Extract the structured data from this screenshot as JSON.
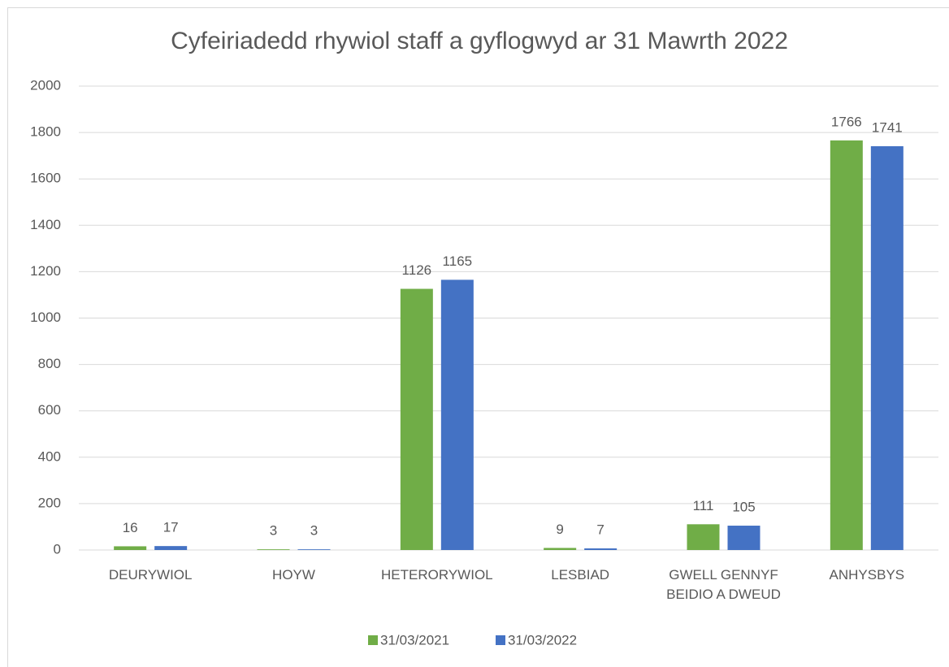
{
  "chart_data": {
    "type": "bar",
    "title": "Cyfeiriadedd rhywiol staff a gyflogwyd ar 31 Mawrth 2022",
    "categories": [
      "DEURYWIOL",
      "HOYW",
      "HETERORYWIOL",
      "LESBIAD",
      "GWELL GENNYF BEIDIO A DWEUD",
      "ANHYSBYS"
    ],
    "series": [
      {
        "name": "31/03/2021",
        "color": "#70ad47",
        "values": [
          16,
          3,
          1126,
          9,
          111,
          1766
        ]
      },
      {
        "name": "31/03/2022",
        "color": "#4472c4",
        "values": [
          17,
          3,
          1165,
          7,
          105,
          1741
        ]
      }
    ],
    "ylim": [
      0,
      2000
    ],
    "yticks": [
      0,
      200,
      400,
      600,
      800,
      1000,
      1200,
      1400,
      1600,
      1800,
      2000
    ],
    "grid": true,
    "legend": "bottom",
    "data_labels": true
  }
}
